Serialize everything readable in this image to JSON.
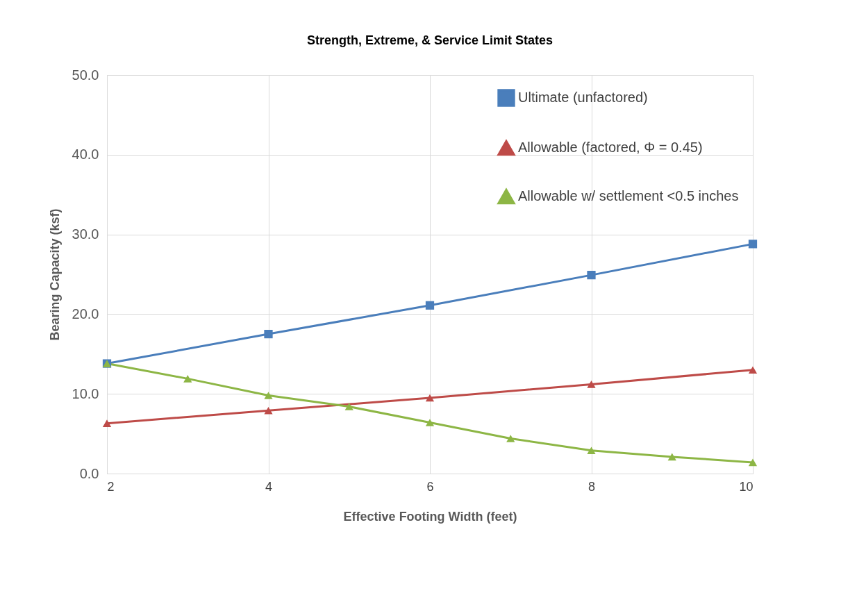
{
  "chart_data": {
    "type": "line",
    "title": "Strength, Extreme, & Service Limit States",
    "xlabel": "Effective Footing Width (feet)",
    "ylabel": "Bearing Capacity (ksf)",
    "xlim": [
      2,
      10
    ],
    "xticks": [
      2,
      4,
      6,
      8,
      10
    ],
    "ylim": [
      0,
      50
    ],
    "yticks": [
      {
        "value": 0,
        "label": "0.0"
      },
      {
        "value": 10,
        "label": "10.0"
      },
      {
        "value": 20,
        "label": "20.0"
      },
      {
        "value": 30,
        "label": "30.0"
      },
      {
        "value": 40,
        "label": "40.0"
      },
      {
        "value": 50,
        "label": "50.0"
      }
    ],
    "grid": true,
    "legend": "top right",
    "line_style": "solid",
    "series": [
      {
        "name": "Ultimate (unfactored)",
        "color": "#4a7ebb",
        "marker": "square",
        "x": [
          2,
          4,
          6,
          8,
          10
        ],
        "values": [
          13.8,
          17.5,
          21.1,
          24.9,
          28.8
        ]
      },
      {
        "name": "Allowable (factored, Φ = 0.45)",
        "color": "#be4b48",
        "marker": "triangle",
        "x": [
          2,
          4,
          6,
          8,
          10
        ],
        "values": [
          6.3,
          7.9,
          9.5,
          11.2,
          13.0
        ]
      },
      {
        "name": "Allowable w/ settlement <0.5 inches",
        "color": "#8db645",
        "marker": "triangle",
        "x": [
          2,
          3,
          4,
          5,
          6,
          7,
          8,
          9,
          10
        ],
        "values": [
          13.8,
          11.9,
          9.8,
          8.4,
          6.4,
          4.4,
          2.9,
          2.1,
          1.4
        ]
      }
    ]
  }
}
